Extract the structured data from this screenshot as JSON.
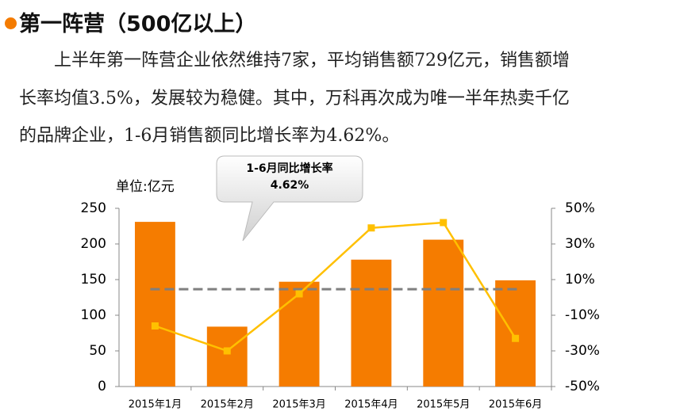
{
  "heading": "第一阵营（500亿以上）",
  "paragraph": [
    "上半年第一阵营企业依然维持7家，平均销售额729亿元，销售额增",
    "长率均值3.5%，发展较为稳健。其中，万科再次成为唯一半年热卖千亿",
    "的品牌企业，1-6月销售额同比增长率为4.62%。"
  ],
  "chart_data": {
    "type": "bar",
    "unit": "单位:亿元",
    "callout": "1-6月同比增长率",
    "categories": [
      "2015年1月",
      "2015年2月",
      "2015年3月",
      "2015年4月",
      "2015年5月",
      "2015年6月"
    ],
    "series": [
      {
        "type": "bar",
        "color": "#f57c00",
        "values": [
          231,
          84,
          147,
          178,
          206,
          149
        ]
      },
      {
        "type": "line",
        "color": "#ffc000",
        "axis": "y2",
        "values": [
          -16,
          -30,
          2,
          39,
          42,
          -23
        ]
      }
    ],
    "reference_line": {
      "value": 4.62,
      "label": "4.62%",
      "color": "#7f7f7f",
      "axis": "y2"
    },
    "ylim": [
      0,
      250
    ],
    "yticks": [
      0,
      50,
      100,
      150,
      200,
      250
    ],
    "y2lim": [
      -50,
      50
    ],
    "y2ticks": [
      {
        "value": -50,
        "label": "-50%"
      },
      {
        "value": -30,
        "label": "-30%"
      },
      {
        "value": -10,
        "label": "-10%"
      },
      {
        "value": 10,
        "label": "10%"
      },
      {
        "value": 30,
        "label": "30%"
      },
      {
        "value": 50,
        "label": "50%"
      }
    ]
  }
}
